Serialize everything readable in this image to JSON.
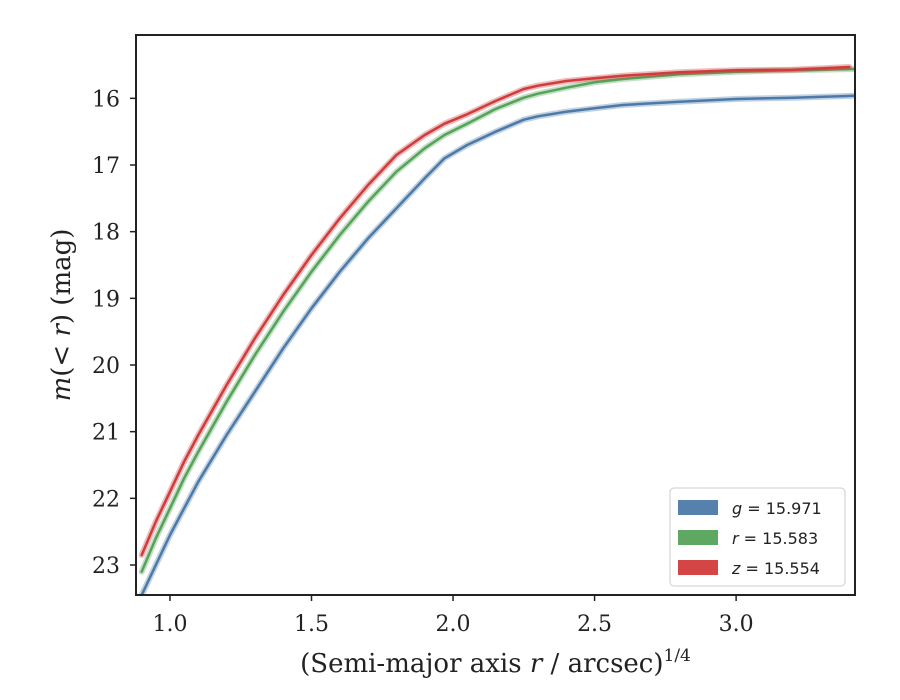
{
  "chart_data": {
    "type": "line",
    "xlabel": {
      "prefix": "(Semi-major axis ",
      "var": "r",
      "suffix": " / arcsec)",
      "sup": "1/4"
    },
    "ylabel": {
      "prefix": "m(",
      "var": "< r",
      "suffix": ") (mag)"
    },
    "xlim": [
      0.88,
      3.42
    ],
    "ylim": [
      23.45,
      15.05
    ],
    "y_inverted": true,
    "x_ticks": [
      {
        "value": 1.0,
        "label": "1.0"
      },
      {
        "value": 1.5,
        "label": "1.5"
      },
      {
        "value": 2.0,
        "label": "2.0"
      },
      {
        "value": 2.5,
        "label": "2.5"
      },
      {
        "value": 3.0,
        "label": "3.0"
      }
    ],
    "y_ticks": [
      {
        "value": 16,
        "label": "16"
      },
      {
        "value": 17,
        "label": "17"
      },
      {
        "value": 18,
        "label": "18"
      },
      {
        "value": 19,
        "label": "19"
      },
      {
        "value": 20,
        "label": "20"
      },
      {
        "value": 21,
        "label": "21"
      },
      {
        "value": 22,
        "label": "22"
      },
      {
        "value": 23,
        "label": "23"
      }
    ],
    "grid": false,
    "legend": "bottom-right",
    "series": [
      {
        "name": "g = 15.971",
        "band": "g",
        "value": "15.971",
        "color": "#4c7aa8",
        "x": [
          0.9,
          0.95,
          1.0,
          1.05,
          1.1,
          1.2,
          1.3,
          1.4,
          1.5,
          1.6,
          1.7,
          1.8,
          1.9,
          1.97,
          2.05,
          2.15,
          2.25,
          2.3,
          2.4,
          2.5,
          2.6,
          2.8,
          3.0,
          3.2,
          3.42
        ],
        "y": [
          23.45,
          23.0,
          22.55,
          22.15,
          21.75,
          21.05,
          20.4,
          19.75,
          19.15,
          18.6,
          18.1,
          17.65,
          17.2,
          16.9,
          16.7,
          16.5,
          16.32,
          16.27,
          16.2,
          16.15,
          16.1,
          16.05,
          16.01,
          15.99,
          15.96
        ]
      },
      {
        "name": "r = 15.583",
        "band": "r",
        "value": "15.583",
        "color": "#55a35a",
        "x": [
          0.9,
          0.95,
          1.0,
          1.05,
          1.1,
          1.2,
          1.3,
          1.4,
          1.5,
          1.6,
          1.7,
          1.8,
          1.9,
          1.97,
          2.05,
          2.15,
          2.25,
          2.3,
          2.4,
          2.5,
          2.6,
          2.8,
          3.0,
          3.2,
          3.42
        ],
        "y": [
          23.1,
          22.6,
          22.15,
          21.7,
          21.3,
          20.55,
          19.85,
          19.2,
          18.6,
          18.05,
          17.55,
          17.1,
          16.75,
          16.55,
          16.38,
          16.16,
          15.99,
          15.93,
          15.84,
          15.76,
          15.71,
          15.64,
          15.6,
          15.58,
          15.56
        ]
      },
      {
        "name": "z = 15.554",
        "band": "z",
        "value": "15.554",
        "color": "#d23b3b",
        "x": [
          0.9,
          0.95,
          1.0,
          1.05,
          1.1,
          1.2,
          1.3,
          1.4,
          1.5,
          1.6,
          1.7,
          1.8,
          1.9,
          1.97,
          2.05,
          2.15,
          2.25,
          2.3,
          2.4,
          2.5,
          2.6,
          2.8,
          3.0,
          3.2,
          3.4
        ],
        "y": [
          22.85,
          22.35,
          21.9,
          21.45,
          21.05,
          20.3,
          19.6,
          18.95,
          18.35,
          17.8,
          17.3,
          16.85,
          16.55,
          16.38,
          16.24,
          16.04,
          15.86,
          15.81,
          15.74,
          15.7,
          15.66,
          15.61,
          15.58,
          15.57,
          15.53
        ]
      }
    ]
  }
}
